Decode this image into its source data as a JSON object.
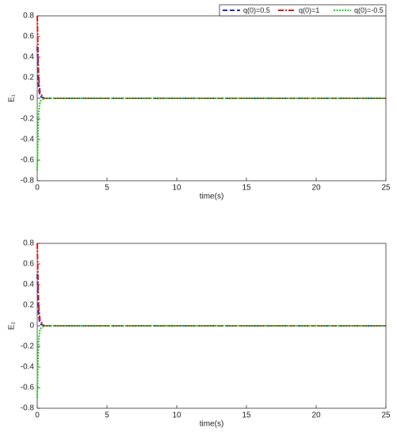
{
  "chart_data": [
    {
      "type": "line",
      "xlabel": "time(s)",
      "ylabel": "E₁",
      "x": [
        0,
        0.05,
        0.1,
        0.2,
        0.5,
        5,
        10,
        15,
        20,
        25
      ],
      "xlim": [
        0,
        25
      ],
      "xticks": [
        0,
        5,
        10,
        15,
        20,
        25
      ],
      "ylim": [
        -0.8,
        0.8
      ],
      "yticks": [
        -0.8,
        -0.6,
        -0.4,
        -0.2,
        0,
        0.2,
        0.4,
        0.6,
        0.8
      ],
      "legend": "upper right",
      "series": [
        {
          "name": "q(0)=0.5",
          "color": "#1f2fd0",
          "dash": "dashed",
          "values": [
            0.5,
            0.3,
            0.1,
            0.02,
            0,
            0,
            0,
            0,
            0,
            0
          ]
        },
        {
          "name": "q(0)=1",
          "color": "#d01f1f",
          "dash": "dashdot",
          "values": [
            0.8,
            0.5,
            0.2,
            0.05,
            0,
            0,
            0,
            0,
            0,
            0
          ]
        },
        {
          "name": "q(0)=-0.5",
          "color": "#22cc22",
          "dash": "dotted",
          "values": [
            -0.7,
            -0.4,
            -0.15,
            -0.03,
            0,
            0,
            0,
            0,
            0,
            0
          ]
        }
      ]
    },
    {
      "type": "line",
      "xlabel": "time(s)",
      "ylabel": "E₂",
      "x": [
        0,
        0.05,
        0.1,
        0.2,
        0.5,
        5,
        10,
        15,
        20,
        25
      ],
      "xlim": [
        0,
        25
      ],
      "xticks": [
        0,
        5,
        10,
        15,
        20,
        25
      ],
      "ylim": [
        -0.8,
        0.8
      ],
      "yticks": [
        -0.8,
        -0.6,
        -0.4,
        -0.2,
        0,
        0.2,
        0.4,
        0.6,
        0.8
      ],
      "series": [
        {
          "color": "#1f2fd0",
          "dash": "dashed",
          "values": [
            0.5,
            0.3,
            0.1,
            0.02,
            0,
            0,
            0,
            0,
            0,
            0
          ]
        },
        {
          "color": "#d01f1f",
          "dash": "dashdot",
          "values": [
            0.8,
            0.5,
            0.2,
            0.05,
            0,
            0,
            0,
            0,
            0,
            0
          ]
        },
        {
          "color": "#22cc22",
          "dash": "dotted",
          "values": [
            -0.7,
            -0.4,
            -0.15,
            -0.03,
            0,
            0,
            0,
            0,
            0,
            0
          ]
        }
      ]
    }
  ]
}
